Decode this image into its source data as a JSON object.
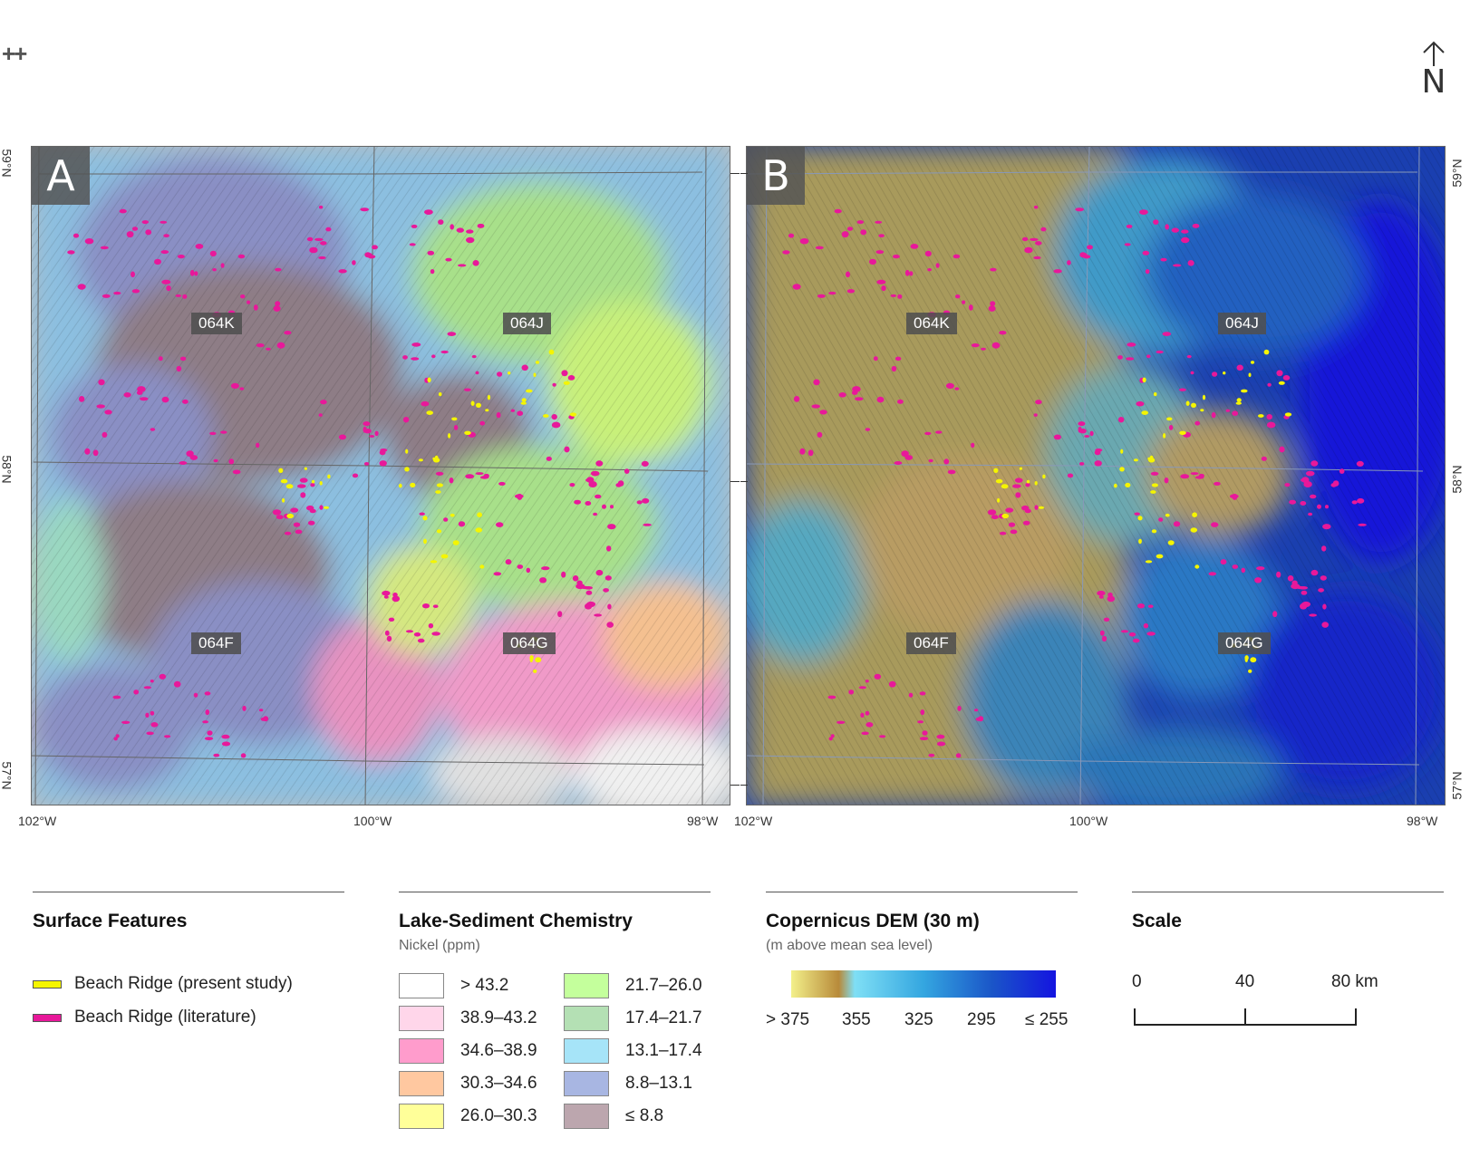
{
  "corner_mark": "++",
  "north_arrow": {
    "label": "N",
    "icon": "arrow-up-icon"
  },
  "panels": [
    {
      "letter": "A",
      "type": "lake-sediment-nickel-over-hillshade"
    },
    {
      "letter": "B",
      "type": "copernicus-dem-over-hillshade"
    }
  ],
  "sheets": [
    "064K",
    "064J",
    "064F",
    "064G"
  ],
  "lon_labels": [
    "102°W",
    "100°W",
    "98°W"
  ],
  "lat_labels": [
    "59°N",
    "58°N",
    "57°N"
  ],
  "legend": {
    "surface": {
      "title": "Surface Features",
      "items": [
        {
          "label": "Beach Ridge (present study)",
          "color": "#f5f500"
        },
        {
          "label": "Beach Ridge (literature)",
          "color": "#e8189a"
        }
      ]
    },
    "chem": {
      "title": "Lake-Sediment Chemistry",
      "subtitle": "Nickel (ppm)",
      "classes": [
        {
          "label": "> 43.2",
          "color": "#ffffff"
        },
        {
          "label": "38.9–43.2",
          "color": "#ffd6ea"
        },
        {
          "label": "34.6–38.9",
          "color": "#ff9ccc"
        },
        {
          "label": "30.3–34.6",
          "color": "#ffc8a0"
        },
        {
          "label": "26.0–30.3",
          "color": "#ffff99"
        },
        {
          "label": "21.7–26.0",
          "color": "#c4ff9c"
        },
        {
          "label": "17.4–21.7",
          "color": "#b4e0b4"
        },
        {
          "label": "13.1–17.4",
          "color": "#a6e4f8"
        },
        {
          "label": "8.8–13.1",
          "color": "#a8b6e2"
        },
        {
          "label": "≤ 8.8",
          "color": "#bca6ae"
        }
      ]
    },
    "dem": {
      "title": "Copernicus DEM (30 m)",
      "subtitle": "(m above mean sea level)",
      "ticks": [
        "> 375",
        "355",
        "325",
        "295",
        "≤ 255"
      ],
      "colors": [
        "#f3f08a",
        "#b88a3a",
        "#7fdff5",
        "#34a6e0",
        "#1a55c8",
        "#1414e0"
      ]
    },
    "scale": {
      "title": "Scale",
      "labels": [
        "0",
        "40",
        "80 km"
      ]
    }
  }
}
